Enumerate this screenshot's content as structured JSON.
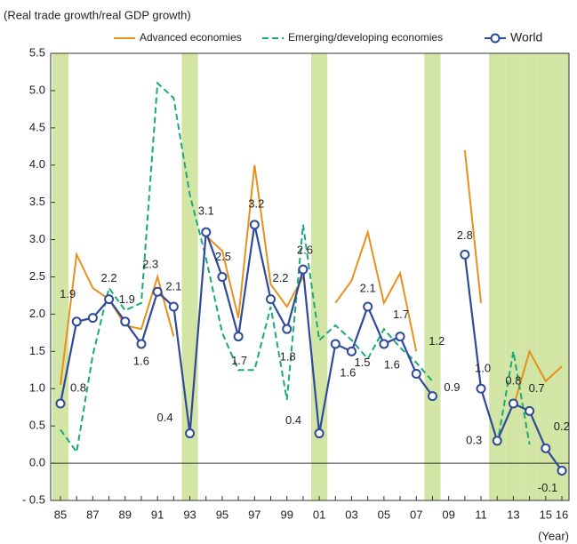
{
  "chart_data": {
    "type": "line",
    "title": "(Real trade growth/real GDP growth)",
    "x_label": "(Year)",
    "categories": [
      "85",
      null,
      "87",
      null,
      "89",
      null,
      "91",
      null,
      "93",
      null,
      "95",
      null,
      "97",
      null,
      "99",
      null,
      "01",
      null,
      "03",
      null,
      "05",
      null,
      "07",
      null,
      "09",
      null,
      "11",
      null,
      "13",
      null,
      "15",
      "16"
    ],
    "series": [
      {
        "name": "Advanced economies",
        "color": "#e8901c",
        "style": "solid",
        "markers": false,
        "values": [
          1.05,
          2.8,
          2.35,
          2.2,
          1.85,
          1.8,
          2.5,
          1.7,
          null,
          3.05,
          2.85,
          1.95,
          4.0,
          2.4,
          2.1,
          2.5,
          null,
          2.15,
          2.45,
          3.1,
          2.15,
          2.55,
          1.5,
          null,
          null,
          4.2,
          2.15,
          null,
          0.75,
          1.5,
          1.1,
          1.3
        ]
      },
      {
        "name": "Emerging/developing economies",
        "color": "#1aaa7a",
        "style": "dashed",
        "markers": false,
        "values": [
          0.45,
          0.15,
          1.45,
          2.35,
          2.05,
          2.15,
          5.1,
          4.9,
          3.6,
          2.75,
          1.75,
          1.25,
          1.25,
          2.1,
          0.85,
          3.2,
          1.65,
          1.85,
          1.65,
          1.4,
          1.8,
          1.55,
          1.35,
          1.1,
          null,
          null,
          null,
          0.25,
          1.5,
          0.25,
          null,
          null
        ]
      },
      {
        "name": "World",
        "color": "#2e4a9a",
        "style": "solid",
        "markers": true,
        "values": [
          0.8,
          1.9,
          1.95,
          2.2,
          1.9,
          1.6,
          2.3,
          2.1,
          0.4,
          3.1,
          2.5,
          1.7,
          3.2,
          2.2,
          1.8,
          2.6,
          0.4,
          1.6,
          1.5,
          2.1,
          1.6,
          1.7,
          1.2,
          0.9,
          null,
          2.8,
          1.0,
          0.3,
          0.8,
          0.7,
          0.2,
          -0.1
        ],
        "value_labels": [
          "0.8",
          "1.9",
          null,
          "2.2",
          "1.9",
          "1.6",
          "2.3",
          "2.1",
          "0.4",
          "3.1",
          "2.5",
          "1.7",
          "3.2",
          "2.2",
          "1.8",
          "2.6",
          "0.4",
          "1.6",
          "1.5",
          "2.1",
          "1.6",
          "1.7",
          "1.2",
          "0.9",
          null,
          "2.8",
          "1.0",
          "0.3",
          "0.8",
          "0.7",
          "0.2",
          "-0.1"
        ]
      }
    ],
    "ylim": [
      -0.5,
      5.5
    ],
    "yticks": [
      {
        "value": -0.5,
        "label": "- 0.5"
      },
      {
        "value": 0,
        "label": "0.0"
      },
      0.5,
      {
        "value": 1,
        "label": "1.0"
      },
      1.5,
      {
        "value": 2,
        "label": "2.0"
      },
      2.5,
      {
        "value": 3,
        "label": "3.0"
      },
      3.5,
      {
        "value": 4,
        "label": "4.0"
      },
      4.5,
      {
        "value": 5,
        "label": "5.0"
      },
      5.5
    ],
    "highlight_indices": [
      0,
      8,
      16,
      23,
      27,
      28,
      29,
      30,
      31
    ],
    "highlight_color": "#d3e5a4",
    "legend": "top"
  }
}
